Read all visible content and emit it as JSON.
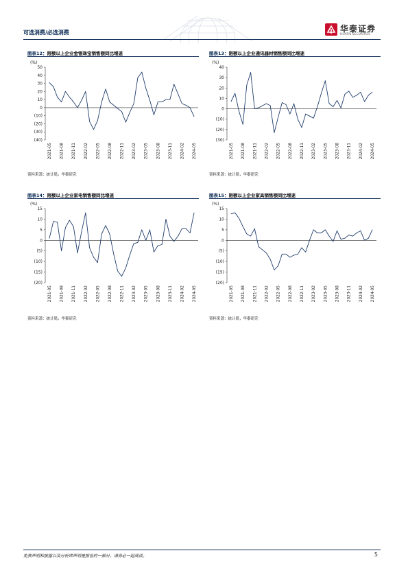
{
  "header": {
    "section": "可选消费/必选消费"
  },
  "logo": {
    "cn": "华泰证券",
    "en": "HUATAI SECURITIES"
  },
  "footer": {
    "disclaimer": "免责声明和披露以及分析师声明是报告的一部分，请务必一起阅读。",
    "page": "5"
  },
  "colors": {
    "line": "#1f3c6b",
    "accent": "#0a2a55",
    "logo_red": "#c8102e"
  },
  "chart_data": [
    {
      "type": "line",
      "title": "限额以上企业金银珠宝销售额同比增速",
      "fig_label": "图表12：",
      "source": "资料来源：统计局，华泰研究",
      "ylabel": "(%)",
      "ylim": [
        -40,
        50
      ],
      "yticks": [
        50,
        40,
        30,
        20,
        10,
        0,
        -10,
        -20,
        -30,
        -40
      ],
      "ytick_labels": [
        "50",
        "40",
        "30",
        "20",
        "10",
        "0",
        "(10)",
        "(20)",
        "(30)",
        "(40)"
      ],
      "xtick_labels": [
        "2021-05",
        "2021-08",
        "2021-11",
        "2022-02",
        "2022-05",
        "2022-08",
        "2022-11",
        "2023-02",
        "2023-05",
        "2023-08",
        "2023-11",
        "2024-02",
        "2024-05"
      ],
      "x": [
        "2021-05",
        "2021-06",
        "2021-07",
        "2021-08",
        "2021-09",
        "2021-10",
        "2021-11",
        "2021-12",
        "2022-01",
        "2022-02",
        "2022-03",
        "2022-04",
        "2022-05",
        "2022-06",
        "2022-07",
        "2022-08",
        "2022-09",
        "2022-10",
        "2022-11",
        "2022-12",
        "2023-01",
        "2023-02",
        "2023-03",
        "2023-04",
        "2023-05",
        "2023-06",
        "2023-07",
        "2023-08",
        "2023-09",
        "2023-10",
        "2023-11",
        "2023-12",
        "2024-01",
        "2024-02",
        "2024-03",
        "2024-04",
        "2024-05"
      ],
      "values": [
        31,
        26,
        13,
        7,
        20,
        13,
        7,
        0,
        9,
        20,
        -17,
        -27,
        -16,
        7,
        23,
        7,
        3,
        -1,
        -5,
        -18,
        -6,
        5,
        37,
        44,
        24,
        9,
        -9,
        7,
        7,
        10,
        10,
        29,
        17,
        5,
        3,
        0,
        -11
      ]
    },
    {
      "type": "line",
      "title": "限额以上企业通讯器材销售额同比增速",
      "fig_label": "图表13：",
      "source": "资料来源：统计局，华泰研究",
      "ylabel": "(%)",
      "ylim": [
        -30,
        40
      ],
      "yticks": [
        40,
        30,
        20,
        10,
        0,
        -10,
        -20,
        -30
      ],
      "ytick_labels": [
        "40",
        "30",
        "20",
        "10",
        "0",
        "(10)",
        "(20)",
        "(30)"
      ],
      "xtick_labels": [
        "2021-05",
        "2021-08",
        "2021-11",
        "2022-02",
        "2022-05",
        "2022-08",
        "2022-11",
        "2023-02",
        "2023-05",
        "2023-08",
        "2023-11",
        "2024-02",
        "2024-05"
      ],
      "x": [
        "2021-05",
        "2021-06",
        "2021-07",
        "2021-08",
        "2021-09",
        "2021-10",
        "2021-11",
        "2021-12",
        "2022-01",
        "2022-02",
        "2022-03",
        "2022-04",
        "2022-05",
        "2022-06",
        "2022-07",
        "2022-08",
        "2022-09",
        "2022-10",
        "2022-11",
        "2022-12",
        "2023-01",
        "2023-02",
        "2023-03",
        "2023-04",
        "2023-05",
        "2023-06",
        "2023-07",
        "2023-08",
        "2023-09",
        "2023-10",
        "2023-11",
        "2023-12",
        "2024-01",
        "2024-02",
        "2024-03",
        "2024-04",
        "2024-05"
      ],
      "values": [
        7,
        15,
        -2,
        -15,
        23,
        35,
        0,
        1,
        3,
        5,
        3,
        -23,
        -8,
        6,
        4,
        -5,
        5,
        -10,
        -18,
        -5,
        -7,
        -9,
        2,
        15,
        27,
        5,
        2,
        8,
        1,
        14,
        17,
        11,
        13,
        16,
        7,
        13,
        16
      ]
    },
    {
      "type": "line",
      "title": "限额以上企业家电销售额同比增速",
      "fig_label": "图表14：",
      "source": "资料来源：统计局，华泰研究",
      "ylabel": "(%)",
      "ylim": [
        -20,
        15
      ],
      "yticks": [
        15,
        10,
        5,
        0,
        -5,
        -10,
        -15,
        -20
      ],
      "ytick_labels": [
        "15",
        "10",
        "5",
        "0",
        "(5)",
        "(10)",
        "(15)",
        "(20)"
      ],
      "xtick_labels": [
        "2021-05",
        "2021-08",
        "2021-11",
        "2022-02",
        "2022-05",
        "2022-08",
        "2022-11",
        "2023-02",
        "2023-05",
        "2023-08",
        "2023-11",
        "2024-02",
        "2024-05"
      ],
      "x": [
        "2021-05",
        "2021-06",
        "2021-07",
        "2021-08",
        "2021-09",
        "2021-10",
        "2021-11",
        "2021-12",
        "2022-01",
        "2022-02",
        "2022-03",
        "2022-04",
        "2022-05",
        "2022-06",
        "2022-07",
        "2022-08",
        "2022-09",
        "2022-10",
        "2022-11",
        "2022-12",
        "2023-01",
        "2023-02",
        "2023-03",
        "2023-04",
        "2023-05",
        "2023-06",
        "2023-07",
        "2023-08",
        "2023-09",
        "2023-10",
        "2023-11",
        "2023-12",
        "2024-01",
        "2024-02",
        "2024-03",
        "2024-04",
        "2024-05"
      ],
      "values": [
        1,
        9,
        8.5,
        -5,
        6,
        9.5,
        6.5,
        -6,
        4,
        13,
        -3.5,
        -8,
        -10.5,
        3,
        7,
        3,
        -6.5,
        -14.5,
        -17,
        -13,
        -7,
        -1.5,
        -1,
        5,
        0,
        5,
        -5.5,
        -2.5,
        -2,
        10,
        2,
        -0.5,
        2,
        5.5,
        5.5,
        3.5,
        13
      ]
    },
    {
      "type": "line",
      "title": "限额以上企业家具销售额同比增速",
      "fig_label": "图表15：",
      "source": "资料来源：统计局，华泰研究",
      "ylabel": "(%)",
      "ylim": [
        -20,
        15
      ],
      "yticks": [
        15,
        10,
        5,
        0,
        -5,
        -10,
        -15,
        -20
      ],
      "ytick_labels": [
        "15",
        "10",
        "5",
        "0",
        "(5)",
        "(10)",
        "(15)",
        "(20)"
      ],
      "xtick_labels": [
        "2021-05",
        "2021-08",
        "2021-11",
        "2022-02",
        "2022-05",
        "2022-08",
        "2022-11",
        "2023-02",
        "2023-05",
        "2023-08",
        "2023-11",
        "2024-02",
        "2024-05"
      ],
      "x": [
        "2021-05",
        "2021-06",
        "2021-07",
        "2021-08",
        "2021-09",
        "2021-10",
        "2021-11",
        "2021-12",
        "2022-01",
        "2022-02",
        "2022-03",
        "2022-04",
        "2022-05",
        "2022-06",
        "2022-07",
        "2022-08",
        "2022-09",
        "2022-10",
        "2022-11",
        "2022-12",
        "2023-01",
        "2023-02",
        "2023-03",
        "2023-04",
        "2023-05",
        "2023-06",
        "2023-07",
        "2023-08",
        "2023-09",
        "2023-10",
        "2023-11",
        "2023-12",
        "2024-01",
        "2024-02",
        "2024-03",
        "2024-04",
        "2024-05"
      ],
      "values": [
        12.5,
        13,
        10.5,
        6.5,
        3,
        2,
        5.5,
        -3,
        -4.5,
        -6,
        -9,
        -14,
        -12,
        -6.5,
        -6.5,
        -8,
        -7,
        -6.5,
        -3.5,
        -5.5,
        0,
        5,
        3.5,
        3.5,
        5,
        2,
        -0.5,
        4.5,
        0.5,
        1,
        2.5,
        2,
        3.5,
        4.5,
        0,
        1,
        5
      ]
    }
  ]
}
